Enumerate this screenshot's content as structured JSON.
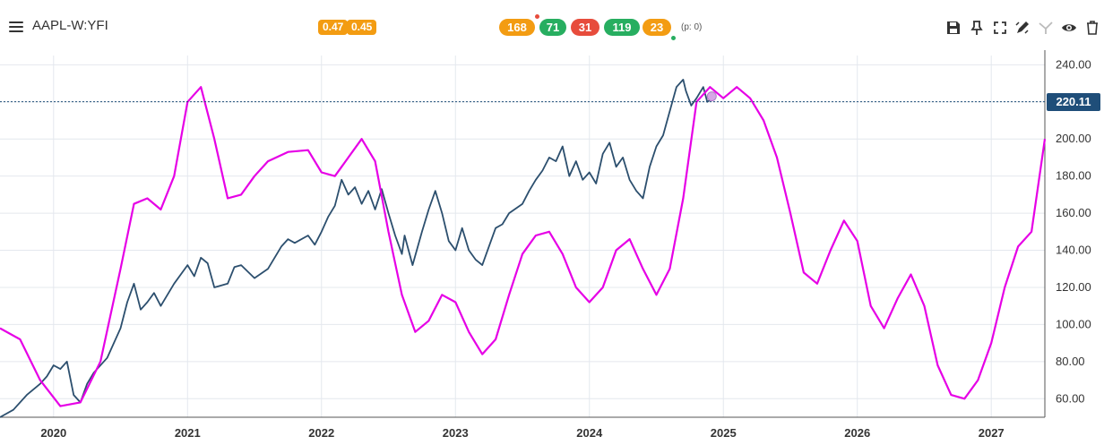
{
  "header": {
    "symbol": "AAPL-W:YFI",
    "badges_left": [
      {
        "label": "0.47",
        "color": "#f39c12"
      },
      {
        "label": "0.45",
        "color": "#f39c12"
      }
    ],
    "pills": [
      {
        "label": "168",
        "color": "#f39c12"
      },
      {
        "label": "71",
        "color": "#27ae60"
      },
      {
        "label": "31",
        "color": "#e74c3c"
      },
      {
        "label": "119",
        "color": "#27ae60"
      },
      {
        "label": "23",
        "color": "#f39c12"
      }
    ],
    "p_info": "(p: 0)",
    "toolbar_icons": [
      "save-icon",
      "pin-icon",
      "fullscreen-icon",
      "draw-icon",
      "indicator-icon",
      "eye-icon",
      "trash-icon"
    ]
  },
  "chart_data": {
    "type": "line",
    "x_ticks": [
      "2020",
      "2021",
      "2022",
      "2023",
      "2024",
      "2025",
      "2026",
      "2027"
    ],
    "y_ticks": [
      "240.00",
      "220.00",
      "200.00",
      "180.00",
      "160.00",
      "140.00",
      "120.00",
      "100.00",
      "80.00",
      "60.00"
    ],
    "ylim": [
      50,
      245
    ],
    "xlim": [
      2019.6,
      2027.4
    ],
    "grid": true,
    "current_price": 220.11,
    "current_price_label": "220.11",
    "series": [
      {
        "color": "#2c4f6e",
        "points": [
          [
            2019.6,
            50
          ],
          [
            2019.7,
            54
          ],
          [
            2019.8,
            62
          ],
          [
            2019.9,
            68
          ],
          [
            2019.95,
            72
          ],
          [
            2020.0,
            78
          ],
          [
            2020.05,
            76
          ],
          [
            2020.1,
            80
          ],
          [
            2020.15,
            62
          ],
          [
            2020.2,
            58
          ],
          [
            2020.25,
            68
          ],
          [
            2020.3,
            74
          ],
          [
            2020.4,
            82
          ],
          [
            2020.5,
            98
          ],
          [
            2020.55,
            112
          ],
          [
            2020.6,
            122
          ],
          [
            2020.65,
            108
          ],
          [
            2020.7,
            112
          ],
          [
            2020.75,
            117
          ],
          [
            2020.8,
            110
          ],
          [
            2020.9,
            122
          ],
          [
            2021.0,
            132
          ],
          [
            2021.05,
            126
          ],
          [
            2021.1,
            136
          ],
          [
            2021.15,
            133
          ],
          [
            2021.2,
            120
          ],
          [
            2021.3,
            122
          ],
          [
            2021.35,
            131
          ],
          [
            2021.4,
            132
          ],
          [
            2021.5,
            125
          ],
          [
            2021.6,
            130
          ],
          [
            2021.7,
            142
          ],
          [
            2021.75,
            146
          ],
          [
            2021.8,
            144
          ],
          [
            2021.9,
            148
          ],
          [
            2021.95,
            143
          ],
          [
            2022.0,
            150
          ],
          [
            2022.05,
            158
          ],
          [
            2022.1,
            164
          ],
          [
            2022.15,
            178
          ],
          [
            2022.2,
            170
          ],
          [
            2022.25,
            174
          ],
          [
            2022.3,
            165
          ],
          [
            2022.35,
            172
          ],
          [
            2022.4,
            162
          ],
          [
            2022.45,
            173
          ],
          [
            2022.5,
            160
          ],
          [
            2022.55,
            148
          ],
          [
            2022.6,
            138
          ],
          [
            2022.62,
            148
          ],
          [
            2022.68,
            132
          ],
          [
            2022.75,
            150
          ],
          [
            2022.8,
            162
          ],
          [
            2022.85,
            172
          ],
          [
            2022.9,
            160
          ],
          [
            2022.95,
            145
          ],
          [
            2023.0,
            140
          ],
          [
            2023.05,
            152
          ],
          [
            2023.1,
            140
          ],
          [
            2023.15,
            135
          ],
          [
            2023.2,
            132
          ],
          [
            2023.25,
            142
          ],
          [
            2023.3,
            152
          ],
          [
            2023.35,
            154
          ],
          [
            2023.4,
            160
          ],
          [
            2023.5,
            165
          ],
          [
            2023.55,
            172
          ],
          [
            2023.6,
            178
          ],
          [
            2023.65,
            183
          ],
          [
            2023.7,
            190
          ],
          [
            2023.75,
            188
          ],
          [
            2023.8,
            196
          ],
          [
            2023.85,
            180
          ],
          [
            2023.9,
            188
          ],
          [
            2023.95,
            178
          ],
          [
            2024.0,
            182
          ],
          [
            2024.05,
            176
          ],
          [
            2024.1,
            192
          ],
          [
            2024.15,
            198
          ],
          [
            2024.2,
            185
          ],
          [
            2024.25,
            190
          ],
          [
            2024.3,
            178
          ],
          [
            2024.35,
            172
          ],
          [
            2024.4,
            168
          ],
          [
            2024.45,
            185
          ],
          [
            2024.5,
            196
          ],
          [
            2024.55,
            202
          ],
          [
            2024.6,
            215
          ],
          [
            2024.65,
            228
          ],
          [
            2024.7,
            232
          ],
          [
            2024.72,
            226
          ],
          [
            2024.76,
            218
          ],
          [
            2024.8,
            222
          ],
          [
            2024.85,
            228
          ],
          [
            2024.88,
            220
          ],
          [
            2024.9,
            221
          ]
        ]
      },
      {
        "color": "#e600e6",
        "points": [
          [
            2019.6,
            98
          ],
          [
            2019.75,
            92
          ],
          [
            2019.9,
            70
          ],
          [
            2020.05,
            56
          ],
          [
            2020.2,
            58
          ],
          [
            2020.35,
            80
          ],
          [
            2020.5,
            130
          ],
          [
            2020.6,
            165
          ],
          [
            2020.7,
            168
          ],
          [
            2020.8,
            162
          ],
          [
            2020.9,
            180
          ],
          [
            2021.0,
            220
          ],
          [
            2021.1,
            228
          ],
          [
            2021.2,
            200
          ],
          [
            2021.3,
            168
          ],
          [
            2021.4,
            170
          ],
          [
            2021.5,
            180
          ],
          [
            2021.6,
            188
          ],
          [
            2021.75,
            193
          ],
          [
            2021.9,
            194
          ],
          [
            2022.0,
            182
          ],
          [
            2022.1,
            180
          ],
          [
            2022.2,
            190
          ],
          [
            2022.3,
            200
          ],
          [
            2022.4,
            188
          ],
          [
            2022.5,
            150
          ],
          [
            2022.6,
            116
          ],
          [
            2022.7,
            96
          ],
          [
            2022.8,
            102
          ],
          [
            2022.9,
            116
          ],
          [
            2023.0,
            112
          ],
          [
            2023.1,
            96
          ],
          [
            2023.2,
            84
          ],
          [
            2023.3,
            92
          ],
          [
            2023.4,
            116
          ],
          [
            2023.5,
            138
          ],
          [
            2023.6,
            148
          ],
          [
            2023.7,
            150
          ],
          [
            2023.8,
            138
          ],
          [
            2023.9,
            120
          ],
          [
            2024.0,
            112
          ],
          [
            2024.1,
            120
          ],
          [
            2024.2,
            140
          ],
          [
            2024.3,
            146
          ],
          [
            2024.4,
            130
          ],
          [
            2024.5,
            116
          ],
          [
            2024.6,
            130
          ],
          [
            2024.7,
            168
          ],
          [
            2024.8,
            220
          ],
          [
            2024.9,
            228
          ],
          [
            2025.0,
            222
          ],
          [
            2025.1,
            228
          ],
          [
            2025.2,
            222
          ],
          [
            2025.3,
            210
          ],
          [
            2025.4,
            190
          ],
          [
            2025.5,
            160
          ],
          [
            2025.6,
            128
          ],
          [
            2025.7,
            122
          ],
          [
            2025.8,
            140
          ],
          [
            2025.9,
            156
          ],
          [
            2026.0,
            145
          ],
          [
            2026.1,
            110
          ],
          [
            2026.2,
            98
          ],
          [
            2026.3,
            114
          ],
          [
            2026.4,
            127
          ],
          [
            2026.5,
            110
          ],
          [
            2026.6,
            78
          ],
          [
            2026.7,
            62
          ],
          [
            2026.8,
            60
          ],
          [
            2026.9,
            70
          ],
          [
            2027.0,
            90
          ],
          [
            2027.1,
            120
          ],
          [
            2027.2,
            142
          ],
          [
            2027.3,
            150
          ],
          [
            2027.4,
            200
          ]
        ]
      }
    ]
  }
}
